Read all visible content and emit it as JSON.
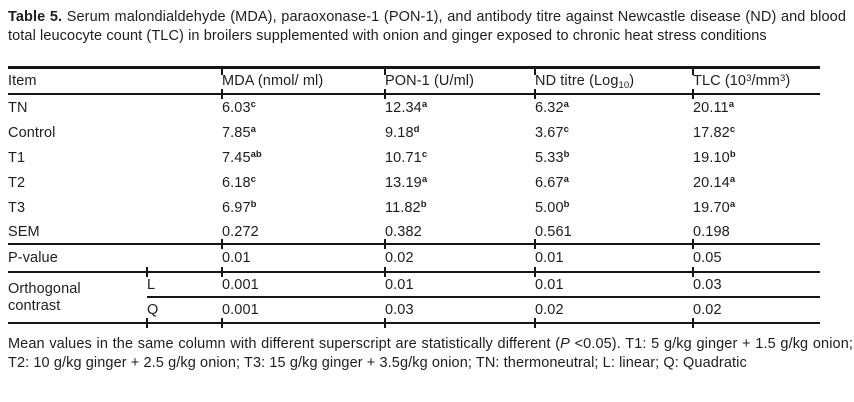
{
  "caption": {
    "label": "Table 5.",
    "text": "Serum malondialdehyde (MDA), paraoxonase-1 (PON-1), and antibody titre against Newcastle disease (ND) and blood total leucocyte count (TLC) in broilers supplemented with onion and ginger exposed to chronic heat stress conditions"
  },
  "table": {
    "headers": {
      "item": "Item",
      "mda": "MDA (nmol/ ml)",
      "pon": "PON-1 (U/ml)",
      "nd": "ND titre (Log~{10})",
      "tlc": "TLC (10^{3}/mm^{3})"
    },
    "rows": [
      {
        "item": "TN",
        "mda": "6.03^{c}",
        "pon": "12.34^{a}",
        "nd": "6.32^{a}",
        "tlc": "20.11^{a}"
      },
      {
        "item": "Control",
        "mda": "7.85^{a}",
        "pon": "9.18^{d}",
        "nd": "3.67^{c}",
        "tlc": "17.82^{c}"
      },
      {
        "item": "T1",
        "mda": "7.45^{ab}",
        "pon": "10.71^{c}",
        "nd": "5.33^{b}",
        "tlc": "19.10^{b}"
      },
      {
        "item": "T2",
        "mda": "6.18^{c}",
        "pon": "13.19^{a}",
        "nd": "6.67^{a}",
        "tlc": "20.14^{a}"
      },
      {
        "item": "T3",
        "mda": "6.97^{b}",
        "pon": "11.82^{b}",
        "nd": "5.00^{b}",
        "tlc": "19.70^{a}"
      },
      {
        "item": "SEM",
        "mda": "0.272",
        "pon": "0.382",
        "nd": "0.561",
        "tlc": "0.198"
      }
    ],
    "p_value": {
      "item": "P-value",
      "mda": "0.01",
      "pon": "0.02",
      "nd": "0.01",
      "tlc": "0.05"
    },
    "orthogonal": {
      "label": "Orthogonal contrast",
      "contrasts": [
        {
          "label": "L",
          "mda": "0.001",
          "pon": "0.01",
          "nd": "0.01",
          "tlc": "0.03"
        },
        {
          "label": "Q",
          "mda": "0.001",
          "pon": "0.03",
          "nd": "0.02",
          "tlc": "0.02"
        }
      ]
    }
  },
  "footnote": "Mean values in the same column with different superscript are statistically different (*{P} <0.05). T1: 5 g/kg ginger + 1.5 g/kg onion; T2: 10 g/kg ginger + 2.5 g/kg onion; T3: 15 g/kg ginger + 3.5g/kg onion; TN: thermoneutral; L: linear; Q: Quadratic",
  "colors": {
    "text": "#1e1e1e",
    "rule": "#161616",
    "background": "#ffffff"
  }
}
